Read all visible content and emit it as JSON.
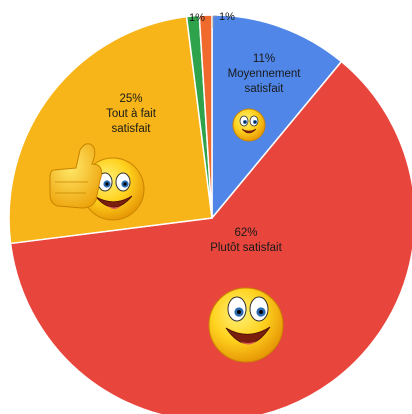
{
  "chart_data": {
    "type": "pie",
    "title": "",
    "start_angle_deg": 0,
    "direction": "clockwise",
    "slices": [
      {
        "id": "moyennement",
        "pct_label": "11%",
        "label_lines": [
          "Moyennement",
          "satisfait"
        ],
        "value": 11,
        "color": "#4f86e8",
        "emoji": "small"
      },
      {
        "id": "plutot",
        "pct_label": "62%",
        "label_lines": [
          "Plutôt satisfait"
        ],
        "value": 62,
        "color": "#e8453c",
        "emoji": "big"
      },
      {
        "id": "tout",
        "pct_label": "25%",
        "label_lines": [
          "Tout à fait",
          "satisfait"
        ],
        "value": 25,
        "color": "#f7b519",
        "emoji": "thumbs"
      },
      {
        "id": "vert",
        "pct_label": "1%",
        "label_lines": [],
        "value": 1,
        "color": "#2fa24c",
        "emoji": "none"
      },
      {
        "id": "orange",
        "pct_label": "1%",
        "label_lines": [],
        "value": 1,
        "color": "#f06a2e",
        "emoji": "none"
      }
    ]
  }
}
